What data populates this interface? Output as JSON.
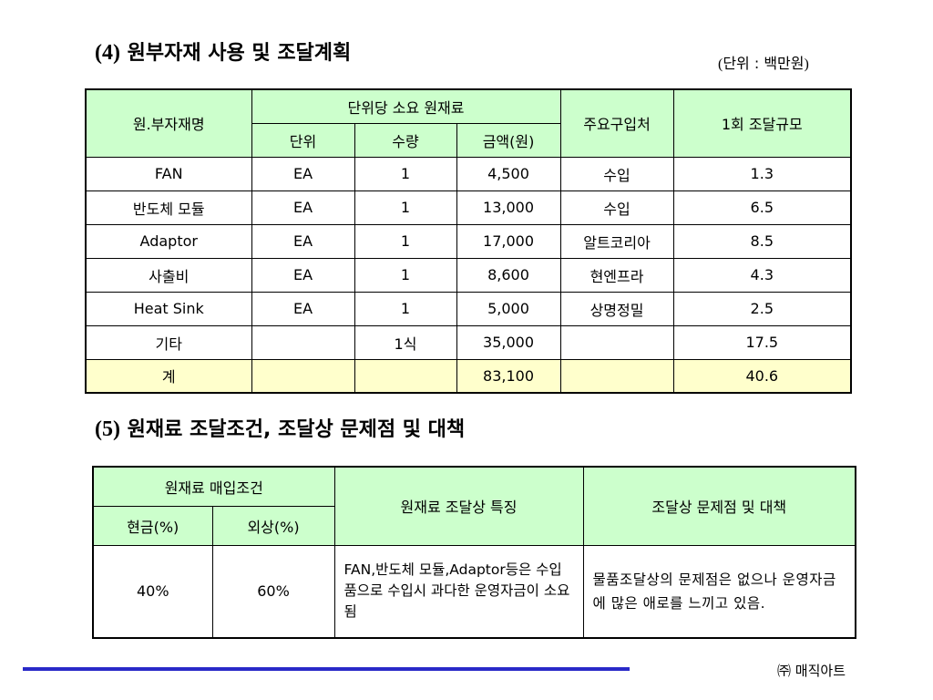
{
  "section4": {
    "number": "(4)",
    "title": "원부자재 사용 및 조달계획",
    "unit_note_open": "(",
    "unit_note_text": "단위 : 백만원",
    "unit_note_close": ")"
  },
  "table1": {
    "headers": {
      "material_name": "원.부자재명",
      "group": "단위당 소요 원재료",
      "unit": "단위",
      "quantity": "수량",
      "amount": "금액(원)",
      "supplier": "주요구입처",
      "procurement": "1회 조달규모"
    },
    "rows": [
      {
        "name": "FAN",
        "unit": "EA",
        "qty": "1",
        "amount": "4,500",
        "supplier": "수입",
        "scale": "1.3"
      },
      {
        "name": "반도체 모듈",
        "unit": "EA",
        "qty": "1",
        "amount": "13,000",
        "supplier": "수입",
        "scale": "6.5"
      },
      {
        "name": "Adaptor",
        "unit": "EA",
        "qty": "1",
        "amount": "17,000",
        "supplier": "알트코리아",
        "scale": "8.5"
      },
      {
        "name": "사출비",
        "unit": "EA",
        "qty": "1",
        "amount": "8,600",
        "supplier": "현엔프라",
        "scale": "4.3"
      },
      {
        "name": "Heat Sink",
        "unit": "EA",
        "qty": "1",
        "amount": "5,000",
        "supplier": "상명정밀",
        "scale": "2.5"
      },
      {
        "name": "기타",
        "unit": "",
        "qty": "1식",
        "amount": "35,000",
        "supplier": "",
        "scale": "17.5"
      }
    ],
    "total": {
      "name": "계",
      "unit": "",
      "qty": "",
      "amount": "83,100",
      "supplier": "",
      "scale": "40.6"
    }
  },
  "section5": {
    "number": "(5)",
    "title": "원재료 조달조건, 조달상 문제점 및 대책"
  },
  "table2": {
    "headers": {
      "purchase_terms": "원재료 매입조건",
      "cash": "현금(%)",
      "credit": "외상(%)",
      "characteristics": "원재료 조달상 특징",
      "issues": "조달상 문제점 및 대책"
    },
    "row": {
      "cash": "40%",
      "credit": "60%",
      "characteristics": "FAN,반도체 모듈,Adaptor등은 수입품으로 수입시 과다한 운영자금이 소요됨",
      "issues": "물품조달상의 문제점은 없으나 운영자금에 많은 애로를 느끼고 있음."
    }
  },
  "footer": {
    "company": "㈜ 매직아트"
  },
  "colors": {
    "header_bg": "#ccffcc",
    "total_bg": "#ffffcc",
    "rule": "#2929c8"
  }
}
